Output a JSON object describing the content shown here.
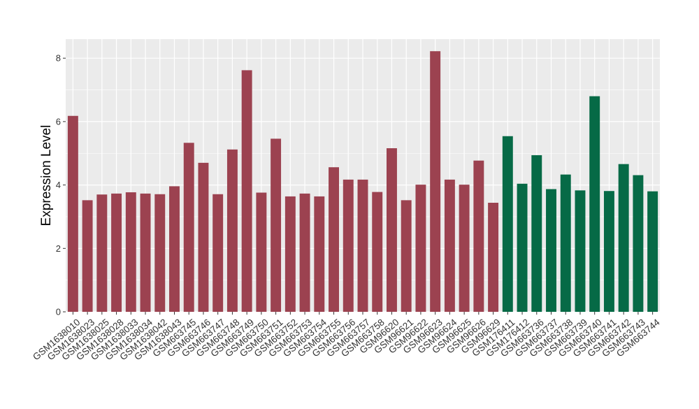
{
  "chart_data": {
    "type": "bar",
    "title": "",
    "xlabel": "",
    "ylabel": "Expression Level",
    "ylim": [
      0,
      8.6
    ],
    "yticks": [
      0,
      2,
      4,
      6,
      8
    ],
    "grid": true,
    "legend": "none",
    "panel_background": "#ebebeb",
    "categories": [
      "GSM1638010",
      "GSM1638023",
      "GSM1638025",
      "GSM1638028",
      "GSM1638033",
      "GSM1638034",
      "GSM1638042",
      "GSM1638043",
      "GSM663745",
      "GSM663746",
      "GSM663747",
      "GSM663748",
      "GSM663749",
      "GSM663750",
      "GSM663751",
      "GSM663752",
      "GSM663753",
      "GSM663754",
      "GSM663755",
      "GSM663756",
      "GSM663757",
      "GSM663758",
      "GSM96620",
      "GSM96621",
      "GSM96622",
      "GSM96623",
      "GSM96624",
      "GSM96625",
      "GSM96626",
      "GSM96629",
      "GSM176411",
      "GSM176412",
      "GSM663736",
      "GSM663737",
      "GSM663738",
      "GSM663739",
      "GSM663740",
      "GSM663741",
      "GSM663742",
      "GSM663743",
      "GSM663744"
    ],
    "values": [
      6.18,
      3.52,
      3.7,
      3.73,
      3.77,
      3.73,
      3.71,
      3.96,
      5.33,
      4.7,
      3.71,
      5.12,
      7.62,
      3.76,
      5.46,
      3.64,
      3.73,
      3.64,
      4.56,
      4.17,
      4.17,
      3.78,
      5.16,
      3.52,
      4.01,
      8.22,
      4.17,
      4.01,
      4.77,
      3.44,
      5.54,
      4.04,
      4.94,
      3.87,
      4.33,
      3.83,
      6.8,
      3.81,
      4.66,
      4.31,
      3.8
    ],
    "groups": [
      0,
      0,
      0,
      0,
      0,
      0,
      0,
      0,
      0,
      0,
      0,
      0,
      0,
      0,
      0,
      0,
      0,
      0,
      0,
      0,
      0,
      0,
      0,
      0,
      0,
      0,
      0,
      0,
      0,
      0,
      1,
      1,
      1,
      1,
      1,
      1,
      1,
      1,
      1,
      1,
      1
    ],
    "colors": [
      "#9c4250",
      "#066a46"
    ]
  }
}
